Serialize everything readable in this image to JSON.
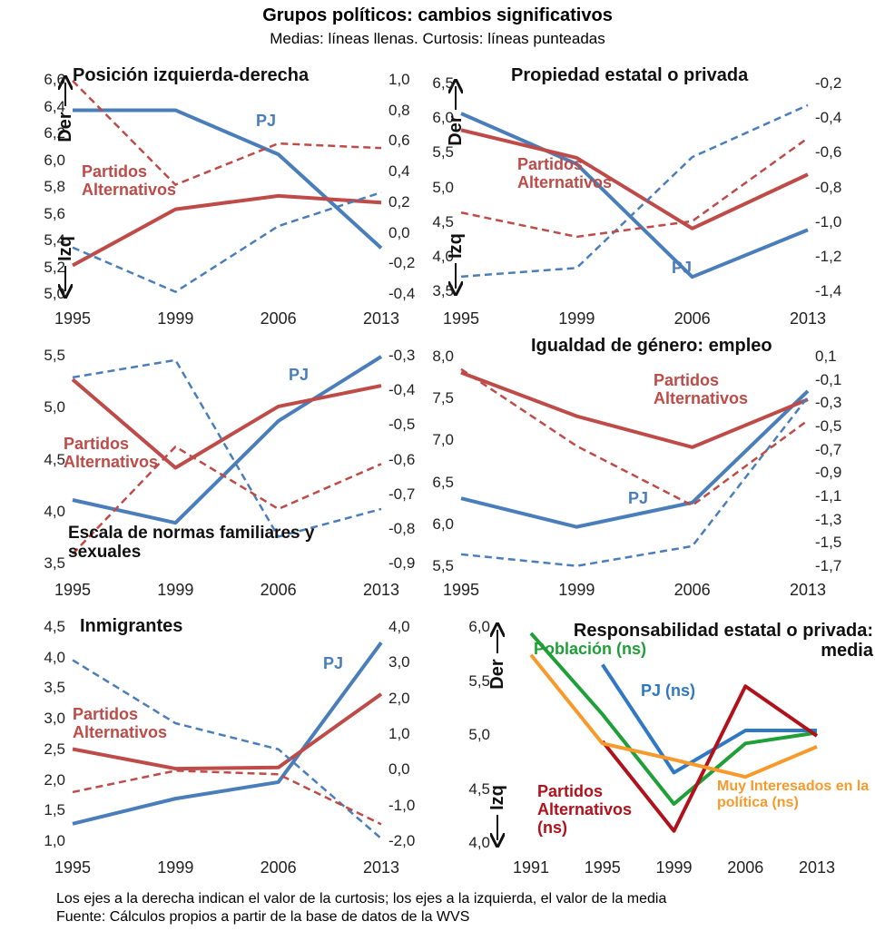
{
  "title": "Grupos políticos: cambios significativos",
  "subtitle": "Medias: líneas llenas. Curtosis: líneas punteadas",
  "notes": [
    "Los ejes a la derecha indican el valor de la curtosis; los ejes a la izquierda, el valor de la media",
    "Fuente: Cálculos propios a partir de la base de datos de la WVS"
  ],
  "chart_data": [
    {
      "type": "line",
      "title": "Posición izquierda-derecha",
      "y_label_top": "Der",
      "y_label_bottom": "Izq",
      "categories": [
        "1995",
        "1999",
        "2006",
        "2013"
      ],
      "ylim": [
        5.0,
        6.6
      ],
      "yticks": [
        {
          "value": 5.0,
          "label": "5,0"
        },
        {
          "value": 5.2,
          "label": "5,2"
        },
        {
          "value": 5.4,
          "label": "5,4"
        },
        {
          "value": 5.6,
          "label": "5,6"
        },
        {
          "value": 5.8,
          "label": "5,8"
        },
        {
          "value": 6.0,
          "label": "6,0"
        },
        {
          "value": 6.2,
          "label": "6,2"
        },
        {
          "value": 6.4,
          "label": "6,4"
        },
        {
          "value": 6.6,
          "label": "6,6"
        }
      ],
      "y2lim": [
        -0.4,
        1.0
      ],
      "y2ticks": [
        {
          "value": -0.4,
          "label": "-0,4"
        },
        {
          "value": -0.2,
          "label": "-0,2"
        },
        {
          "value": 0,
          "label": "0,0"
        },
        {
          "value": 0.2,
          "label": "0,2"
        },
        {
          "value": 0.4,
          "label": "0,4"
        },
        {
          "value": 0.6,
          "label": "0,6"
        },
        {
          "value": 0.8,
          "label": "0,8"
        },
        {
          "value": 1.0,
          "label": "1,0"
        }
      ],
      "series": [
        {
          "name": "PJ",
          "color": "#4a7ebb",
          "style": "solid",
          "values": [
            6.38,
            6.38,
            6.05,
            5.35
          ]
        },
        {
          "name": "Partidos Alternativos",
          "color": "#be4b48",
          "style": "solid",
          "values": [
            5.22,
            5.64,
            5.74,
            5.69
          ]
        },
        {
          "color": "#4a7ebb",
          "style": "dashed",
          "axis": "y2",
          "values": [
            -0.09,
            -0.38,
            0.05,
            0.27
          ]
        },
        {
          "color": "#be4b48",
          "style": "dashed",
          "axis": "y2",
          "values": [
            1.0,
            0.32,
            0.59,
            0.56
          ]
        }
      ]
    },
    {
      "type": "line",
      "title": "Propiedad estatal o privada",
      "y_label_top": "Der",
      "y_label_bottom": "Izq",
      "categories": [
        "1995",
        "1999",
        "2006",
        "2013"
      ],
      "ylim": [
        3.5,
        6.5
      ],
      "yticks": [
        {
          "value": 3.5,
          "label": "3,5"
        },
        {
          "value": 4.0,
          "label": "4,0"
        },
        {
          "value": 4.5,
          "label": "4,5"
        },
        {
          "value": 5.0,
          "label": "5,0"
        },
        {
          "value": 5.5,
          "label": "5,5"
        },
        {
          "value": 6.0,
          "label": "6,0"
        },
        {
          "value": 6.5,
          "label": "6,5"
        }
      ],
      "y2lim": [
        -1.4,
        -0.2
      ],
      "y2ticks": [
        {
          "value": -1.4,
          "label": "-1,4"
        },
        {
          "value": -1.2,
          "label": "-1,2"
        },
        {
          "value": -1.0,
          "label": "-1,0"
        },
        {
          "value": -0.8,
          "label": "-0,8"
        },
        {
          "value": -0.6,
          "label": "-0,6"
        },
        {
          "value": -0.4,
          "label": "-0,4"
        },
        {
          "value": -0.2,
          "label": "-0,2"
        }
      ],
      "series": [
        {
          "name": "PJ",
          "color": "#4a7ebb",
          "style": "solid",
          "values": [
            6.08,
            5.35,
            3.72,
            4.4
          ]
        },
        {
          "name": "Partidos Alternativos",
          "color": "#be4b48",
          "style": "solid",
          "values": [
            5.84,
            5.44,
            4.42,
            5.2
          ]
        },
        {
          "color": "#4a7ebb",
          "style": "dashed",
          "axis": "y2",
          "values": [
            -1.31,
            -1.26,
            -0.62,
            -0.32
          ]
        },
        {
          "color": "#be4b48",
          "style": "dashed",
          "axis": "y2",
          "values": [
            -0.94,
            -1.08,
            -0.99,
            -0.51
          ]
        }
      ]
    },
    {
      "type": "line",
      "title": "Escala de normas familiares y sexuales",
      "categories": [
        "1995",
        "1999",
        "2006",
        "2013"
      ],
      "ylim": [
        3.5,
        5.5
      ],
      "yticks": [
        {
          "value": 3.5,
          "label": "3,5"
        },
        {
          "value": 4.0,
          "label": "4,0"
        },
        {
          "value": 4.5,
          "label": "4,5"
        },
        {
          "value": 5.0,
          "label": "5,0"
        },
        {
          "value": 5.5,
          "label": "5,5"
        }
      ],
      "y2lim": [
        -0.9,
        -0.3
      ],
      "y2ticks": [
        {
          "value": -0.9,
          "label": "-0,9"
        },
        {
          "value": -0.8,
          "label": "-0,8"
        },
        {
          "value": -0.7,
          "label": "-0,7"
        },
        {
          "value": -0.6,
          "label": "-0,6"
        },
        {
          "value": -0.5,
          "label": "-0,5"
        },
        {
          "value": -0.4,
          "label": "-0,4"
        },
        {
          "value": -0.3,
          "label": "-0,3"
        }
      ],
      "series": [
        {
          "name": "PJ",
          "color": "#4a7ebb",
          "style": "solid",
          "values": [
            4.12,
            3.9,
            4.88,
            5.5
          ]
        },
        {
          "name": "Partidos Alternativos",
          "color": "#be4b48",
          "style": "solid",
          "values": [
            5.28,
            4.43,
            5.02,
            5.22
          ]
        },
        {
          "color": "#4a7ebb",
          "style": "dashed",
          "axis": "y2",
          "values": [
            -0.36,
            -0.31,
            -0.82,
            -0.74
          ]
        },
        {
          "color": "#be4b48",
          "style": "dashed",
          "axis": "y2",
          "values": [
            -0.87,
            -0.56,
            -0.74,
            -0.61
          ]
        }
      ]
    },
    {
      "type": "line",
      "title": "Igualdad de género: empleo",
      "categories": [
        "1995",
        "1999",
        "2006",
        "2013"
      ],
      "ylim": [
        5.5,
        8.0
      ],
      "yticks": [
        {
          "value": 5.5,
          "label": "5,5"
        },
        {
          "value": 6.0,
          "label": "6,0"
        },
        {
          "value": 6.5,
          "label": "6,5"
        },
        {
          "value": 7.0,
          "label": "7,0"
        },
        {
          "value": 7.5,
          "label": "7,5"
        },
        {
          "value": 8.0,
          "label": "8,0"
        }
      ],
      "y2lim": [
        -1.7,
        0.1
      ],
      "y2ticks": [
        {
          "value": -1.7,
          "label": "-1,7"
        },
        {
          "value": -1.5,
          "label": "-1,5"
        },
        {
          "value": -1.3,
          "label": "-1,3"
        },
        {
          "value": -1.1,
          "label": "-1,1"
        },
        {
          "value": -0.9,
          "label": "-0,9"
        },
        {
          "value": -0.7,
          "label": "-0,7"
        },
        {
          "value": -0.5,
          "label": "-0,5"
        },
        {
          "value": -0.3,
          "label": "-0,3"
        },
        {
          "value": -0.1,
          "label": "-0,1"
        },
        {
          "value": 0.1,
          "label": "0,1"
        }
      ],
      "series": [
        {
          "name": "PJ",
          "color": "#4a7ebb",
          "style": "solid",
          "values": [
            6.32,
            5.98,
            6.27,
            7.6
          ]
        },
        {
          "name": "Partidos Alternativos",
          "color": "#be4b48",
          "style": "solid",
          "values": [
            7.82,
            7.3,
            6.93,
            7.5
          ]
        },
        {
          "color": "#4a7ebb",
          "style": "dashed",
          "axis": "y2",
          "values": [
            -1.59,
            -1.69,
            -1.52,
            -0.24
          ]
        },
        {
          "color": "#be4b48",
          "style": "dashed",
          "axis": "y2",
          "values": [
            0.0,
            -0.66,
            -1.17,
            -0.44
          ]
        }
      ]
    },
    {
      "type": "line",
      "title": "Inmigrantes",
      "categories": [
        "1995",
        "1999",
        "2006",
        "2013"
      ],
      "ylim": [
        1.0,
        4.5
      ],
      "yticks": [
        {
          "value": 1.0,
          "label": "1,0"
        },
        {
          "value": 1.5,
          "label": "1,5"
        },
        {
          "value": 2.0,
          "label": "2,0"
        },
        {
          "value": 2.5,
          "label": "2,5"
        },
        {
          "value": 3.0,
          "label": "3,0"
        },
        {
          "value": 3.5,
          "label": "3,5"
        },
        {
          "value": 4.0,
          "label": "4,0"
        },
        {
          "value": 4.5,
          "label": "4,5"
        }
      ],
      "y2lim": [
        -2.0,
        4.0
      ],
      "y2ticks": [
        {
          "value": -2.0,
          "label": "-2,0"
        },
        {
          "value": -1.0,
          "label": "-1,0"
        },
        {
          "value": 0,
          "label": "0,0"
        },
        {
          "value": 1.0,
          "label": "1,0"
        },
        {
          "value": 2.0,
          "label": "2,0"
        },
        {
          "value": 3.0,
          "label": "3,0"
        },
        {
          "value": 4.0,
          "label": "4,0"
        }
      ],
      "series": [
        {
          "name": "PJ",
          "color": "#4a7ebb",
          "style": "solid",
          "values": [
            1.3,
            1.71,
            1.98,
            4.26
          ]
        },
        {
          "name": "Partidos Alternativos",
          "color": "#be4b48",
          "style": "solid",
          "values": [
            2.52,
            2.2,
            2.22,
            3.42
          ]
        },
        {
          "color": "#4a7ebb",
          "style": "dashed",
          "axis": "y2",
          "values": [
            3.1,
            1.33,
            0.6,
            -1.9
          ]
        },
        {
          "color": "#be4b48",
          "style": "dashed",
          "axis": "y2",
          "values": [
            -0.6,
            0.0,
            -0.1,
            -1.5
          ]
        }
      ]
    },
    {
      "type": "line",
      "title": "Responsabilidad estatal o privada: media",
      "y_label_top": "Der",
      "y_label_bottom": "Izq",
      "categories": [
        "1991",
        "1995",
        "1999",
        "2006",
        "2013"
      ],
      "ylim": [
        4.0,
        6.0
      ],
      "yticks": [
        {
          "value": 4.0,
          "label": "4,0"
        },
        {
          "value": 4.5,
          "label": "4,5"
        },
        {
          "value": 5.0,
          "label": "5,0"
        },
        {
          "value": 5.5,
          "label": "5,5"
        },
        {
          "value": 6.0,
          "label": "6,0"
        }
      ],
      "series": [
        {
          "name": "Población (ns)",
          "color": "#1e9f37",
          "style": "solid",
          "values": [
            5.95,
            5.2,
            4.37,
            4.93,
            5.03
          ]
        },
        {
          "name": "PJ (ns)",
          "color": "#2f78c4",
          "style": "solid",
          "values": [
            null,
            5.66,
            4.66,
            5.05,
            5.05
          ]
        },
        {
          "name": "Partidos Alternativos (ns)",
          "color": "#b0121b",
          "style": "solid",
          "values": [
            null,
            4.95,
            4.12,
            5.46,
            5.0
          ]
        },
        {
          "name": "Muy Interesados en la política (ns)",
          "color": "#f79a2b",
          "style": "solid",
          "values": [
            5.75,
            4.93,
            4.78,
            4.62,
            4.9
          ]
        }
      ]
    }
  ]
}
